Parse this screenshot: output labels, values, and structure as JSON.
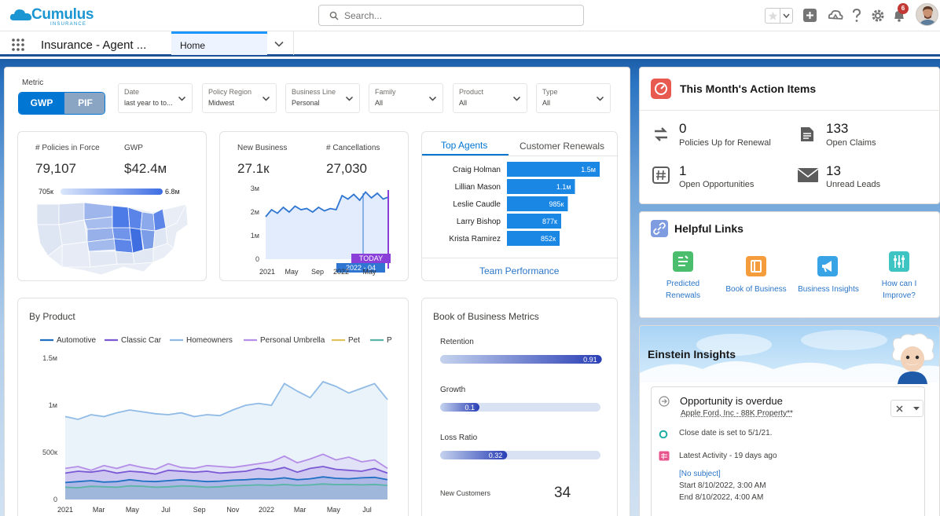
{
  "header": {
    "logo_text": "Cumulus",
    "logo_sub": "INSURANCE",
    "search_placeholder": "Search...",
    "notification_count": "6"
  },
  "nav": {
    "app_name": "Insurance - Agent ...",
    "tab_home": "Home"
  },
  "filters": {
    "metric_label": "Metric",
    "toggle": [
      "GWP",
      "PIF"
    ],
    "items": [
      {
        "label": "Date",
        "value": "last year to to..."
      },
      {
        "label": "Policy Region",
        "value": "Midwest"
      },
      {
        "label": "Business Line",
        "value": "Personal"
      },
      {
        "label": "Family",
        "value": "All"
      },
      {
        "label": "Product",
        "value": "All"
      },
      {
        "label": "Type",
        "value": "All"
      }
    ]
  },
  "kpi_map": {
    "label_policies": "# Policies in Force",
    "label_gwp": "GWP",
    "value_policies": "79,107",
    "value_gwp": "$42.4м",
    "scale_min": "705к",
    "scale_max": "6.8м"
  },
  "kpi_business": {
    "label_new": "New Business",
    "label_cancel": "# Cancellations",
    "value_new": "27.1к",
    "value_cancel": "27,030",
    "today_label": "TODAY",
    "date_label": "2022 - 04"
  },
  "chart_data": [
    {
      "type": "line",
      "title": "",
      "y_ticks": [
        "3м",
        "2м",
        "1м",
        "0"
      ],
      "x_ticks": [
        "2021",
        "May",
        "Sep",
        "2022",
        "May"
      ],
      "ylim": [
        0,
        3000000
      ],
      "x": [
        0,
        1,
        2,
        3,
        4,
        5,
        6,
        7,
        8,
        9,
        10,
        11,
        12,
        13,
        14,
        15,
        16,
        17,
        18,
        19,
        20,
        21
      ],
      "series": [
        {
          "values": [
            1800000,
            2100000,
            1950000,
            2200000,
            2000000,
            2250000,
            2100000,
            2150000,
            2000000,
            2200000,
            2050000,
            2150000,
            2100000,
            2700000,
            2550000,
            2750000,
            2500000,
            2850000,
            2600000,
            2800000,
            2550000,
            2650000
          ]
        }
      ]
    },
    {
      "type": "bar",
      "orientation": "horizontal",
      "tabs": [
        "Top Agents",
        "Customer Renewals"
      ],
      "footer": "Team Performance",
      "categories": [
        "Craig Holman",
        "Lillian Mason",
        "Leslie Caudle",
        "Larry Bishop",
        "Krista Ramirez"
      ],
      "values": [
        1500000,
        1100000,
        985000,
        877000,
        852000
      ],
      "labels": [
        "1.5м",
        "1.1м",
        "985к",
        "877к",
        "852к"
      ]
    },
    {
      "type": "area",
      "title": "By Product",
      "legend": [
        "Automotive",
        "Classic Car",
        "Homeowners",
        "Personal Umbrella",
        "Pet",
        "P"
      ],
      "y_ticks": [
        "1.5м",
        "1м",
        "500к",
        "0"
      ],
      "x_ticks": [
        "2021",
        "Mar",
        "May",
        "Jul",
        "Sep",
        "Nov",
        "2022",
        "Mar",
        "May",
        "Jul"
      ],
      "ylim": [
        0,
        1500000
      ],
      "series": [
        {
          "name": "Homeowners",
          "color": "#8fbbe6",
          "values": [
            880000,
            850000,
            900000,
            880000,
            920000,
            950000,
            930000,
            910000,
            900000,
            920000,
            880000,
            900000,
            890000,
            950000,
            1000000,
            1020000,
            1000000,
            1230000,
            1150000,
            1080000,
            1250000,
            1200000,
            1130000,
            1180000,
            1230000,
            1060000
          ]
        },
        {
          "name": "Personal Umbrella",
          "color": "#b58ee8",
          "values": [
            330000,
            350000,
            310000,
            360000,
            330000,
            370000,
            340000,
            320000,
            380000,
            340000,
            330000,
            360000,
            350000,
            340000,
            360000,
            380000,
            400000,
            460000,
            390000,
            430000,
            480000,
            420000,
            450000,
            400000,
            420000,
            330000
          ]
        },
        {
          "name": "Classic Car",
          "color": "#7b58d4",
          "values": [
            280000,
            300000,
            290000,
            310000,
            280000,
            300000,
            290000,
            270000,
            310000,
            300000,
            290000,
            300000,
            280000,
            290000,
            300000,
            330000,
            310000,
            340000,
            290000,
            330000,
            350000,
            320000,
            310000,
            300000,
            330000,
            280000
          ]
        },
        {
          "name": "Automotive",
          "color": "#1f6fc2",
          "values": [
            180000,
            190000,
            200000,
            185000,
            190000,
            210000,
            195000,
            190000,
            200000,
            210000,
            200000,
            190000,
            195000,
            205000,
            210000,
            220000,
            215000,
            230000,
            210000,
            220000,
            240000,
            225000,
            220000,
            230000,
            235000,
            210000
          ]
        },
        {
          "name": "Pet",
          "color": "#5ab5a7",
          "values": [
            130000,
            125000,
            140000,
            135000,
            130000,
            145000,
            140000,
            130000,
            135000,
            145000,
            140000,
            130000,
            135000,
            145000,
            150000,
            155000,
            150000,
            160000,
            150000,
            155000,
            165000,
            158000,
            160000,
            155000,
            160000,
            150000
          ]
        }
      ]
    },
    {
      "type": "bar",
      "orientation": "horizontal",
      "title": "Book of Business Metrics",
      "categories": [
        "Retention",
        "Growth",
        "Loss Ratio"
      ],
      "values": [
        0.91,
        0.1,
        0.32
      ],
      "labels": [
        "0.91",
        "0.1",
        "0.32"
      ]
    }
  ],
  "book_metrics_extra": {
    "label": "New Customers",
    "value": "34"
  },
  "action_items": {
    "title": "This Month's Action Items",
    "items": [
      {
        "value": "0",
        "label": "Policies Up for Renewal"
      },
      {
        "value": "133",
        "label": "Open Claims"
      },
      {
        "value": "1",
        "label": "Open Opportunities"
      },
      {
        "value": "13",
        "label": "Unread Leads"
      }
    ]
  },
  "helpful_links": {
    "title": "Helpful Links",
    "items": [
      {
        "line1": "Predicted",
        "line2": "Renewals",
        "color": "#4bbe6e"
      },
      {
        "line1": "Book of Business",
        "line2": "",
        "color": "#f59c3c"
      },
      {
        "line1": "Business Insights",
        "line2": "",
        "color": "#38a4e6"
      },
      {
        "line1": "How can I",
        "line2": "Improve?",
        "color": "#3fc4c4"
      }
    ]
  },
  "einstein": {
    "title": "Einstein Insights",
    "insight_title": "Opportunity is overdue",
    "insight_link": "Apple Ford, Inc - 88K Property**",
    "close_date": "Close date is set to 5/1/21.",
    "activity": "Latest Activity - 19 days ago",
    "subject": "[No subject]",
    "start": "Start 8/10/2022, 3:00 AM",
    "end": "End 8/10/2022, 4:00 AM"
  },
  "colors": {
    "accent": "#0176d3",
    "bar_blue": "#1b87e5",
    "toggle_inactive": "#8aa4c4"
  }
}
